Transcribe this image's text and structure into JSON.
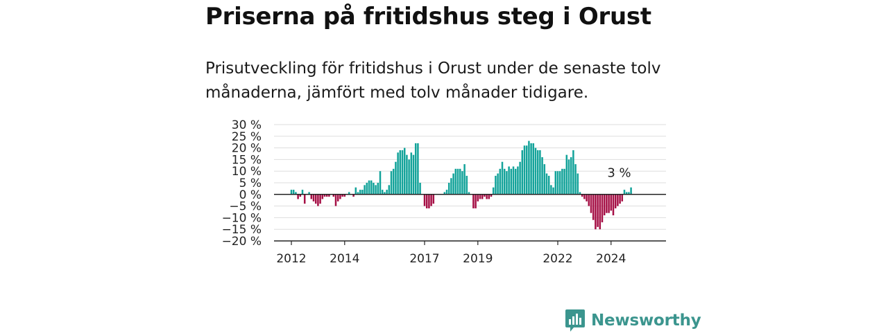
{
  "title": "Priserna på fritidshus steg i Orust",
  "subtitle": "Prisutveckling för fritidshus i Orust under de senaste tolv månaderna, jämfört med tolv månader tidigare.",
  "brand": {
    "name": "Newsworthy",
    "icon": "newsworthy-logo-icon",
    "color": "#3b958e"
  },
  "colors": {
    "positive": "#13a39a",
    "negative": "#a50f45",
    "grid": "#dddddd",
    "axis": "#222222"
  },
  "chart_data": {
    "type": "bar",
    "ylim": [
      -20,
      30
    ],
    "yticks": [
      30,
      25,
      20,
      15,
      10,
      5,
      0,
      -5,
      -10,
      -15,
      -20
    ],
    "ytick_labels": [
      "30 %",
      "25 %",
      "20 %",
      "15 %",
      "10 %",
      "5 %",
      "0 %",
      "−5 %",
      "−10 %",
      "−15 %",
      "−20 %"
    ],
    "xtick_labels": [
      {
        "label": "2012",
        "index": 0
      },
      {
        "label": "2014",
        "index": 24
      },
      {
        "label": "2017",
        "index": 60
      },
      {
        "label": "2019",
        "index": 84
      },
      {
        "label": "2022",
        "index": 120
      },
      {
        "label": "2024",
        "index": 144
      }
    ],
    "grid": true,
    "last_value_label": "3 %",
    "values": [
      2,
      2,
      1,
      -2,
      -1,
      2,
      -4,
      0,
      1,
      -2,
      -3,
      -4,
      -5,
      -4,
      -2,
      -1,
      -1,
      -1,
      0,
      -1,
      -5,
      -3,
      -2,
      -1,
      -1,
      0,
      1,
      0,
      -1,
      3,
      1,
      2,
      2,
      4,
      5,
      6,
      6,
      5,
      4,
      5,
      10,
      2,
      1,
      2,
      4,
      10,
      11,
      14,
      18,
      19,
      19,
      20,
      17,
      15,
      18,
      17,
      22,
      22,
      5,
      0,
      -5,
      -6,
      -6,
      -5,
      -4,
      0,
      0,
      0,
      0,
      1,
      2,
      5,
      7,
      9,
      11,
      11,
      11,
      10,
      13,
      8,
      1,
      0,
      -6,
      -6,
      -3,
      -2,
      -2,
      -1,
      -2,
      -2,
      -1,
      3,
      8,
      9,
      11,
      14,
      11,
      10,
      12,
      11,
      12,
      11,
      12,
      14,
      19,
      21,
      21,
      23,
      22,
      22,
      20,
      19,
      19,
      16,
      13,
      9,
      8,
      4,
      3,
      10,
      10,
      10,
      11,
      11,
      17,
      15,
      16,
      19,
      13,
      9,
      1,
      -1,
      -2,
      -3,
      -5,
      -8,
      -11,
      -15,
      -14,
      -15,
      -12,
      -9,
      -8,
      -8,
      -7,
      -9,
      -6,
      -5,
      -4,
      -3,
      2,
      1,
      1,
      3
    ]
  }
}
